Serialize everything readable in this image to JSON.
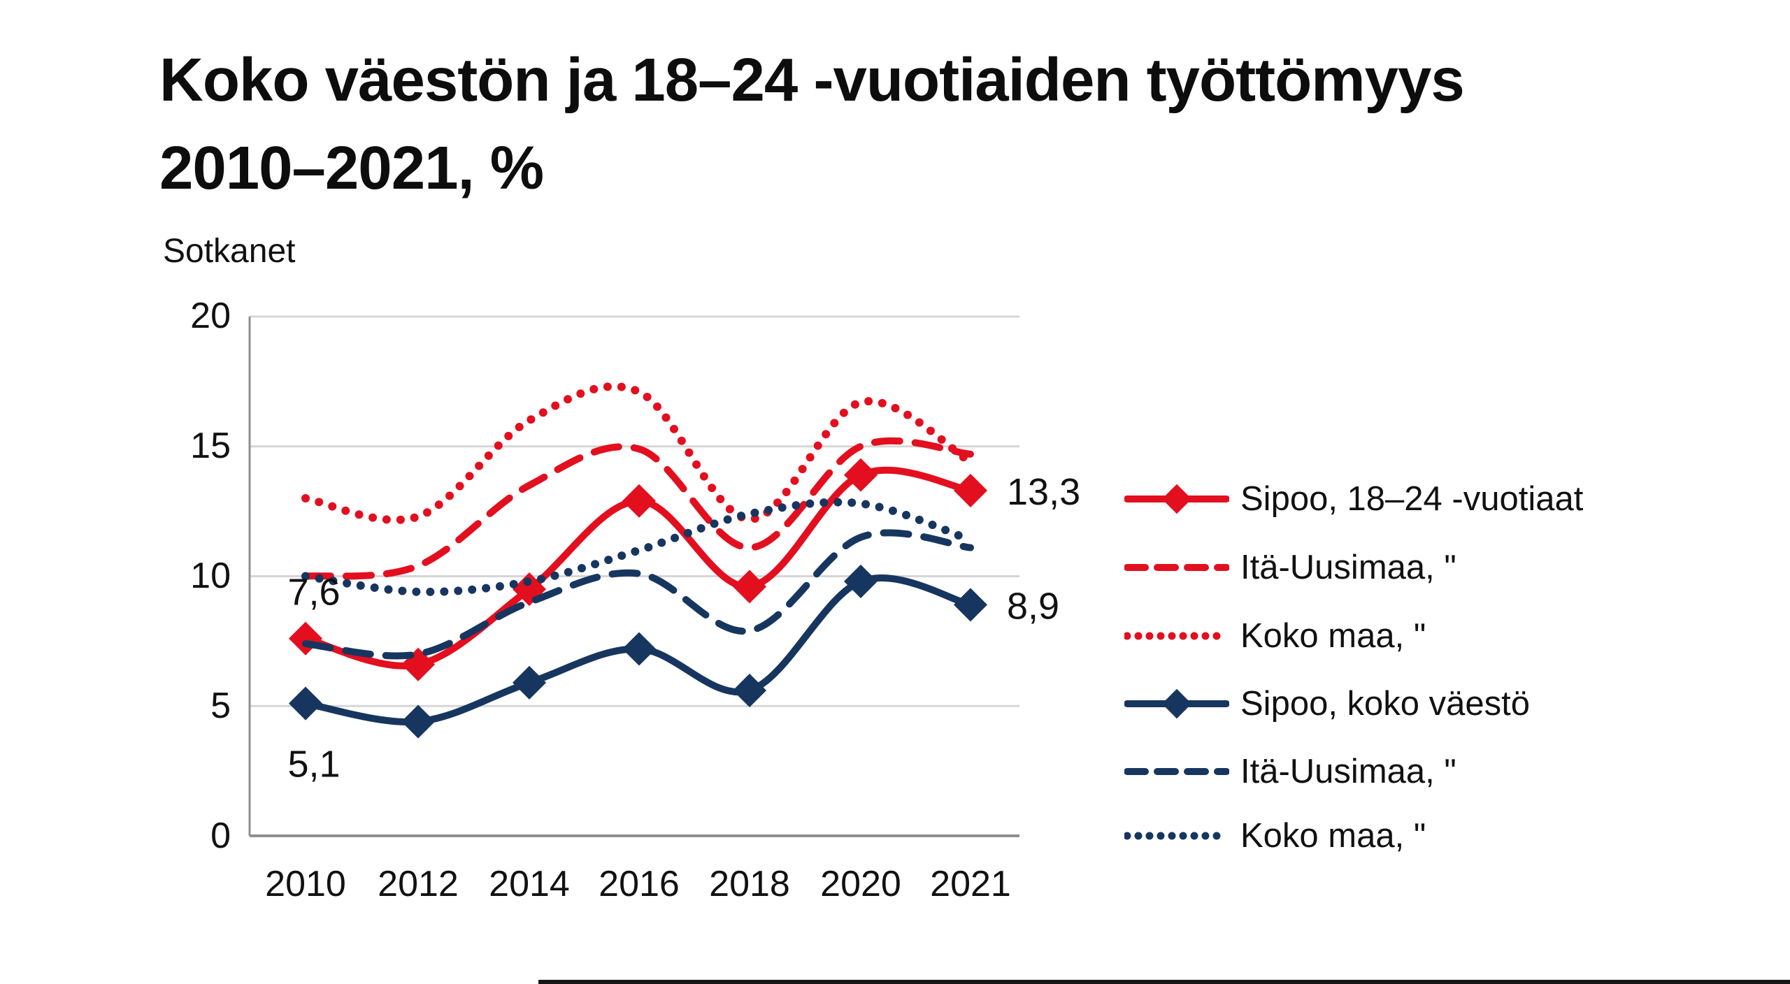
{
  "header": {
    "title_line1": "Koko väestön ja 18–24 -vuotiaiden työttömyys",
    "title_line2": "2010–2021, %",
    "source": "Sotkanet"
  },
  "chart_data": {
    "type": "line",
    "title": "Koko väestön ja 18–24 -vuotiaiden työttömyys 2010–2021, %",
    "subtitle": "Sotkanet",
    "categories": [
      "2010",
      "2012",
      "2014",
      "2016",
      "2018",
      "2020",
      "2021"
    ],
    "xlabel": "",
    "ylabel": "",
    "ylim": [
      0,
      20
    ],
    "y_ticks": [
      0,
      5,
      10,
      15,
      20
    ],
    "y_tick_labels": [
      "0",
      "5",
      "10",
      "15",
      "20"
    ],
    "grid": "horizontal",
    "legend_position": "right",
    "colors": {
      "red": "#e30f1f",
      "navy": "#17365f",
      "gridline": "#d6d6d6",
      "axis": "#8f8f8f"
    },
    "series": [
      {
        "name": "Sipoo, 18–24 -vuotiaat",
        "color": "#e30f1f",
        "style": "solid",
        "marker": "diamond",
        "values": [
          7.6,
          6.6,
          9.5,
          12.9,
          9.6,
          13.9,
          13.3
        ]
      },
      {
        "name": "Itä-Uusimaa, \"",
        "color": "#e30f1f",
        "style": "dashed",
        "marker": "none",
        "values": [
          10.0,
          10.4,
          13.5,
          14.9,
          11.1,
          15.0,
          14.7
        ]
      },
      {
        "name": "Koko maa, \"",
        "color": "#e30f1f",
        "style": "dotted",
        "marker": "none",
        "values": [
          13.0,
          12.3,
          16.0,
          17.1,
          12.2,
          16.7,
          14.4
        ]
      },
      {
        "name": "Sipoo, koko väestö",
        "color": "#17365f",
        "style": "solid",
        "marker": "diamond",
        "values": [
          5.1,
          4.4,
          5.9,
          7.2,
          5.6,
          9.8,
          8.9
        ]
      },
      {
        "name": "Itä-Uusimaa, \"",
        "color": "#17365f",
        "style": "dashed",
        "marker": "none",
        "values": [
          7.4,
          7.0,
          9.0,
          10.1,
          7.9,
          11.5,
          11.1
        ]
      },
      {
        "name": "Koko maa, \"",
        "color": "#17365f",
        "style": "dotted",
        "marker": "none",
        "values": [
          10.0,
          9.4,
          9.8,
          11.0,
          12.4,
          12.8,
          11.4
        ]
      }
    ],
    "point_labels": [
      {
        "text": "7,6",
        "series": 0,
        "index": 0,
        "position": "above"
      },
      {
        "text": "5,1",
        "series": 3,
        "index": 0,
        "position": "below"
      },
      {
        "text": "13,3",
        "series": 0,
        "index": 6,
        "position": "right"
      },
      {
        "text": "8,9",
        "series": 3,
        "index": 6,
        "position": "right"
      }
    ]
  }
}
